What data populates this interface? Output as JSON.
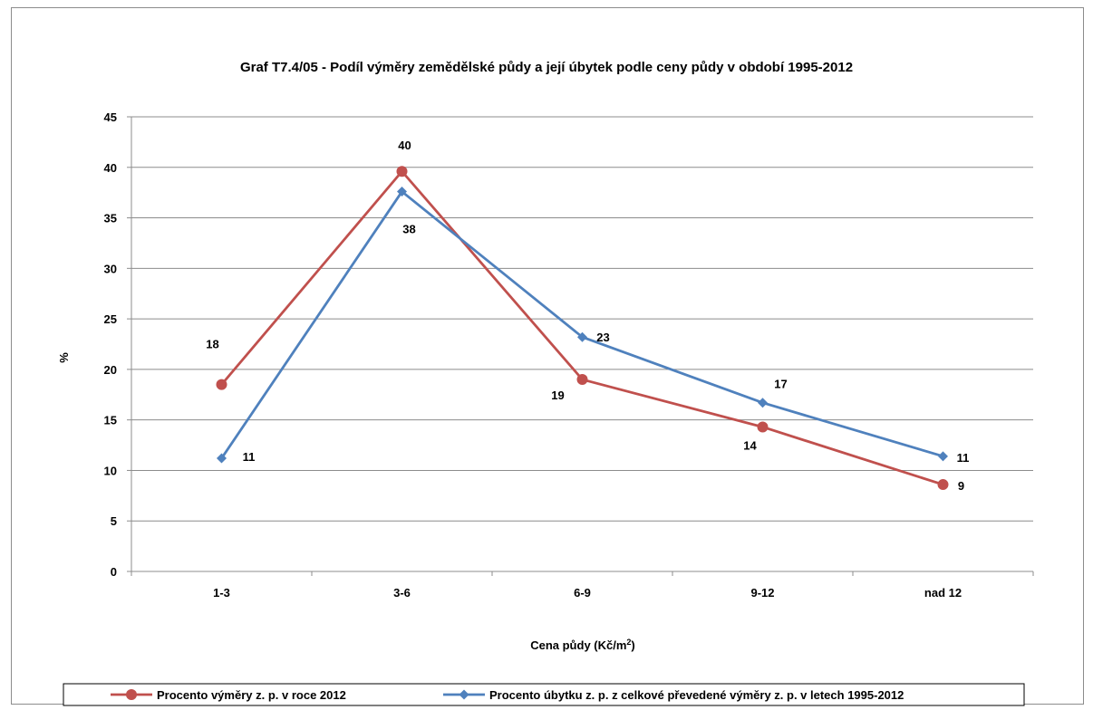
{
  "chart_data": {
    "type": "line",
    "title": "Graf T7.4/05 - Podíl výměry zemědělské půdy a její úbytek  podle ceny půdy v období 1995-2012",
    "xlabel": "Cena půdy (Kč/m²)",
    "ylabel": "%",
    "ylim": [
      0,
      45
    ],
    "ytick_step": 5,
    "yticks": [
      "0",
      "5",
      "10",
      "15",
      "20",
      "25",
      "30",
      "35",
      "40",
      "45"
    ],
    "categories": [
      "1-3",
      "3-6",
      "6-9",
      "9-12",
      "nad 12"
    ],
    "grid": true,
    "legend_position": "bottom",
    "series": [
      {
        "name": "Procento výměry z. p. v roce 2012",
        "values": [
          18.5,
          39.6,
          19.0,
          14.3,
          8.6
        ],
        "labels": [
          "18",
          "40",
          "19",
          "14",
          "9"
        ],
        "color": "#c0504d",
        "marker": "circle"
      },
      {
        "name": "Procento úbytku z. p. z celkové převedené výměry z. p. v letech 1995-2012",
        "values": [
          11.2,
          37.6,
          23.2,
          16.7,
          11.4
        ],
        "labels": [
          "11",
          "38",
          "23",
          "17",
          "11"
        ],
        "color": "#4f81bd",
        "marker": "diamond"
      }
    ]
  }
}
